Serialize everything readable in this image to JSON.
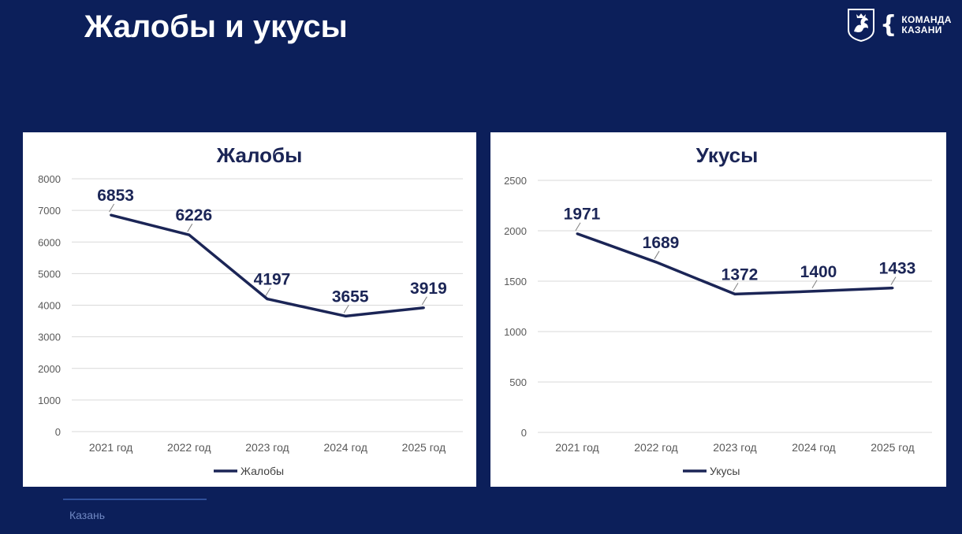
{
  "slide": {
    "title": "Жалобы и укусы",
    "footer_city": "Казань"
  },
  "logo": {
    "line1": "КОМАНДА",
    "line2": "КАЗАНИ",
    "crest_icon": "kazan-coat-of-arms-icon"
  },
  "colors": {
    "background": "#0c1f5a",
    "series_line": "#1b2556",
    "grid": "#d9d9d9",
    "axis_text": "#595959"
  },
  "chart_data": [
    {
      "type": "line",
      "title": "Жалобы",
      "categories": [
        "2021 год",
        "2022 год",
        "2023 год",
        "2024 год",
        "2025 год"
      ],
      "series": [
        {
          "name": "Жалобы",
          "values": [
            6853,
            6226,
            4197,
            3655,
            3919
          ]
        }
      ],
      "ylim": [
        0,
        8000
      ],
      "yticks": [
        0,
        1000,
        2000,
        3000,
        4000,
        5000,
        6000,
        7000,
        8000
      ],
      "grid": true,
      "legend": "bottom",
      "data_labels": true
    },
    {
      "type": "line",
      "title": "Укусы",
      "categories": [
        "2021 год",
        "2022 год",
        "2023 год",
        "2024 год",
        "2025 год"
      ],
      "series": [
        {
          "name": "Укусы",
          "values": [
            1971,
            1689,
            1372,
            1400,
            1433
          ]
        }
      ],
      "ylim": [
        0,
        2500
      ],
      "yticks": [
        0,
        500,
        1000,
        1500,
        2000,
        2500
      ],
      "grid": true,
      "legend": "bottom",
      "data_labels": true
    }
  ]
}
